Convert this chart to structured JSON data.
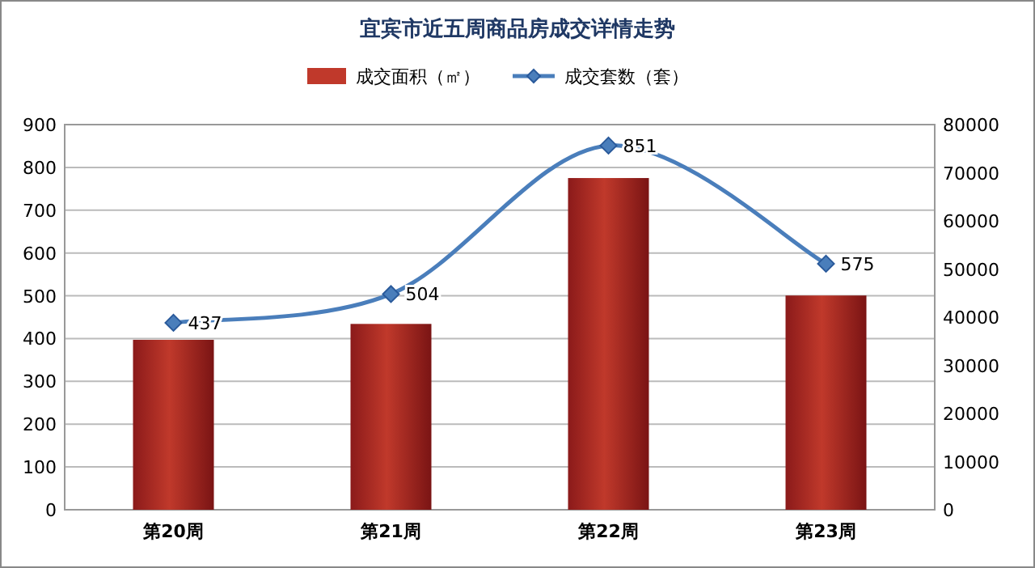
{
  "chart_data": {
    "type": "bar",
    "title": "宜宾市近五周商品房成交详情走势",
    "categories": [
      "第20周",
      "第21周",
      "第22周",
      "第23周"
    ],
    "series": [
      {
        "name": "成交面积（㎡）",
        "axis": "y2",
        "color": "#c0392b",
        "values": [
          35300,
          38600,
          68900,
          44500
        ]
      },
      {
        "name": "成交套数（套）",
        "type": "line",
        "axis": "y",
        "color": "#4a7ebb",
        "marker": "diamond",
        "values": [
          437,
          504,
          851,
          575
        ],
        "value_labels": [
          "437",
          "504",
          "851",
          "575"
        ]
      }
    ],
    "ylim": [
      0,
      900
    ],
    "yticks": [
      0,
      100,
      200,
      300,
      400,
      500,
      600,
      700,
      800,
      900
    ],
    "y2lim": [
      0,
      80000
    ],
    "y2ticks": [
      0,
      10000,
      20000,
      30000,
      40000,
      50000,
      60000,
      70000,
      80000
    ],
    "grid": "y",
    "legend": "top"
  }
}
